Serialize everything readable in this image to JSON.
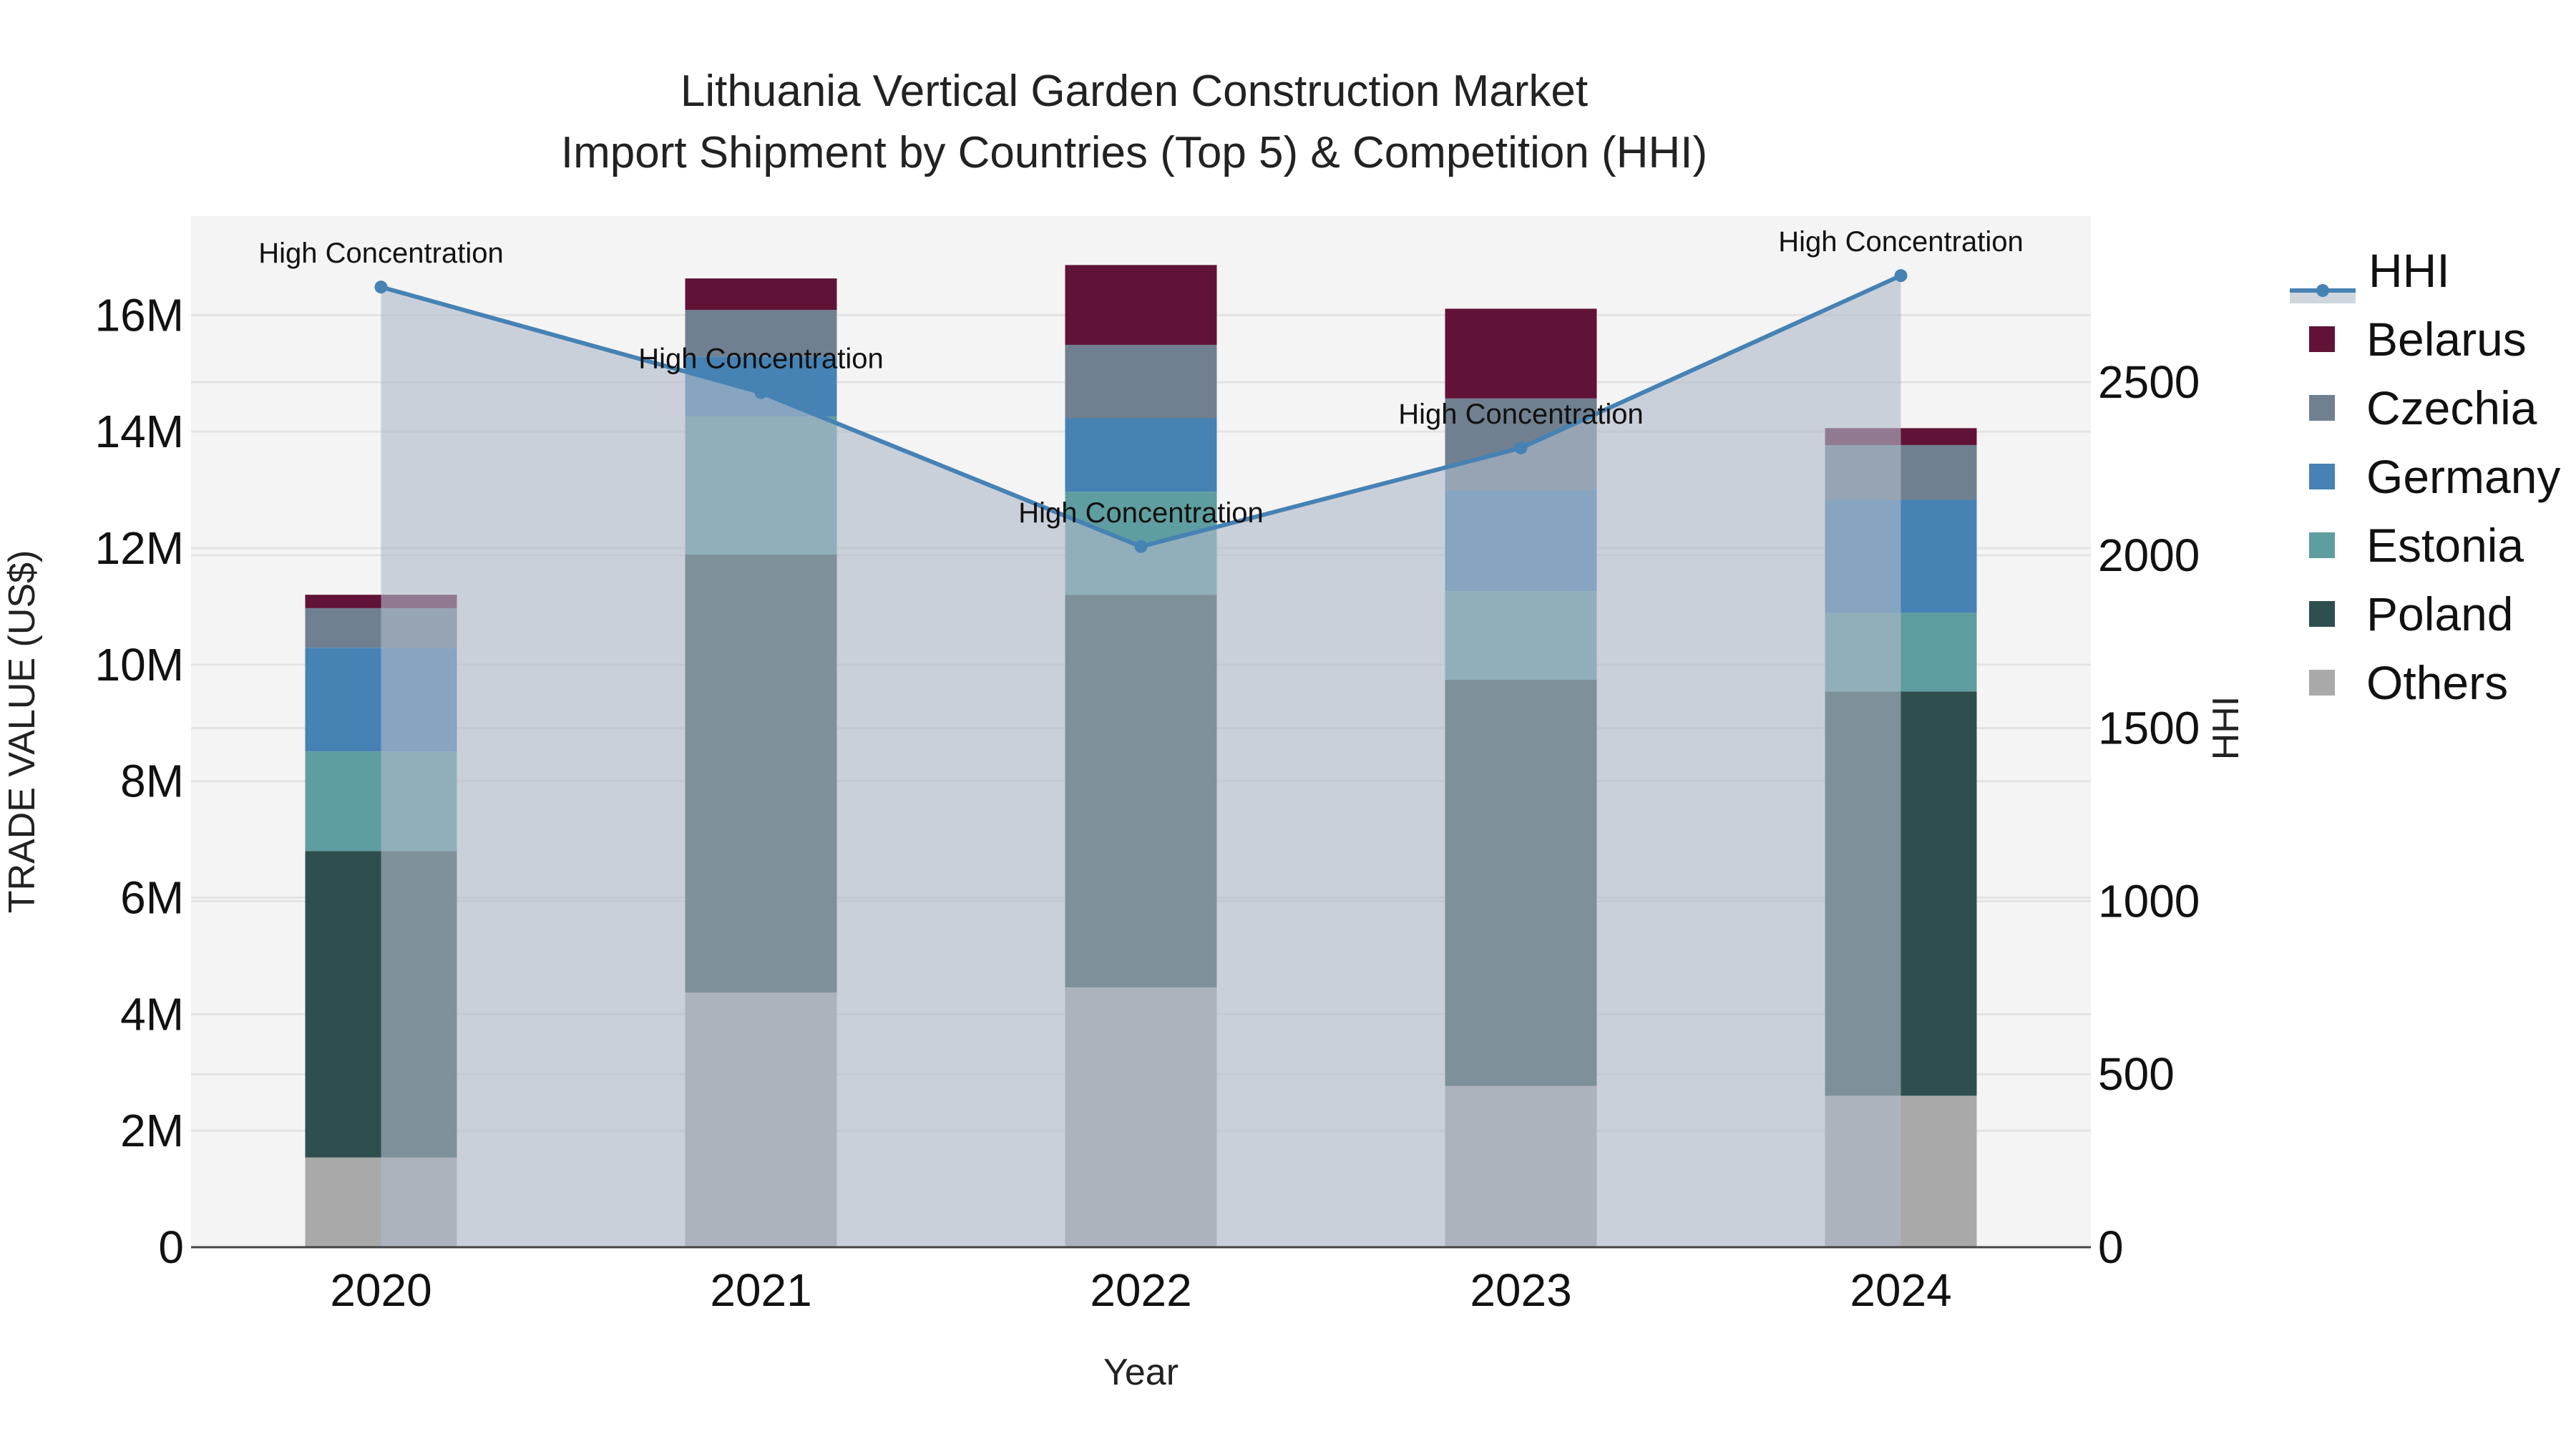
{
  "title": {
    "line1": "Lithuania Vertical Garden Construction Market",
    "line2": "Import Shipment by Countries (Top 5) & Competition (HHI)"
  },
  "axes": {
    "x_label": "Year",
    "y_left_label": "TRADE VALUE (US$)",
    "y_right_label": "HHI",
    "y_left_ticks": [
      "0",
      "2M",
      "4M",
      "6M",
      "8M",
      "10M",
      "12M",
      "14M",
      "16M"
    ],
    "y_right_ticks": [
      "0",
      "500",
      "1000",
      "1500",
      "2000",
      "2500"
    ]
  },
  "legend": {
    "items": [
      {
        "label": "HHI",
        "type": "line",
        "color": "#4682B4"
      },
      {
        "label": "Belarus",
        "type": "bar",
        "color": "#601336"
      },
      {
        "label": "Czechia",
        "type": "bar",
        "color": "#708090"
      },
      {
        "label": "Germany",
        "type": "bar",
        "color": "#4682B4"
      },
      {
        "label": "Estonia",
        "type": "bar",
        "color": "#5F9EA0"
      },
      {
        "label": "Poland",
        "type": "bar",
        "color": "#2F4F4F"
      },
      {
        "label": "Others",
        "type": "bar",
        "color": "#A9A9A9"
      }
    ]
  },
  "annotation_text": "High Concentration",
  "chart_data": {
    "type": "bar",
    "stacked": true,
    "title": "Lithuania Vertical Garden Construction Market — Import Shipment by Countries (Top 5) & Competition (HHI)",
    "xlabel": "Year",
    "ylabel": "TRADE VALUE (US$)",
    "y2label": "HHI",
    "categories": [
      "2020",
      "2021",
      "2022",
      "2023",
      "2024"
    ],
    "ylim": [
      0,
      17700000
    ],
    "y2lim": [
      0,
      2980
    ],
    "grid": true,
    "legend_position": "right",
    "series": [
      {
        "name": "Others",
        "color": "#A9A9A9",
        "values": [
          1540000,
          4370000,
          4460000,
          2770000,
          2600000
        ]
      },
      {
        "name": "Poland",
        "color": "#2F4F4F",
        "values": [
          5260000,
          7520000,
          6740000,
          6970000,
          6940000
        ]
      },
      {
        "name": "Estonia",
        "color": "#5F9EA0",
        "values": [
          1710000,
          2370000,
          1770000,
          1520000,
          1350000
        ]
      },
      {
        "name": "Germany",
        "color": "#4682B4",
        "values": [
          1780000,
          1030000,
          1260000,
          1740000,
          1940000
        ]
      },
      {
        "name": "Czechia",
        "color": "#708090",
        "values": [
          680000,
          800000,
          1260000,
          1570000,
          940000
        ]
      },
      {
        "name": "Belarus",
        "color": "#601336",
        "values": [
          230000,
          540000,
          1370000,
          1540000,
          290000
        ]
      }
    ],
    "line_series": {
      "name": "HHI",
      "axis": "right",
      "color": "#4682B4",
      "fill": "tozeroy",
      "values": [
        2775,
        2470,
        2025,
        2310,
        2808
      ],
      "annotations": [
        "High Concentration",
        "High Concentration",
        "High Concentration",
        "High Concentration",
        "High Concentration"
      ]
    }
  }
}
